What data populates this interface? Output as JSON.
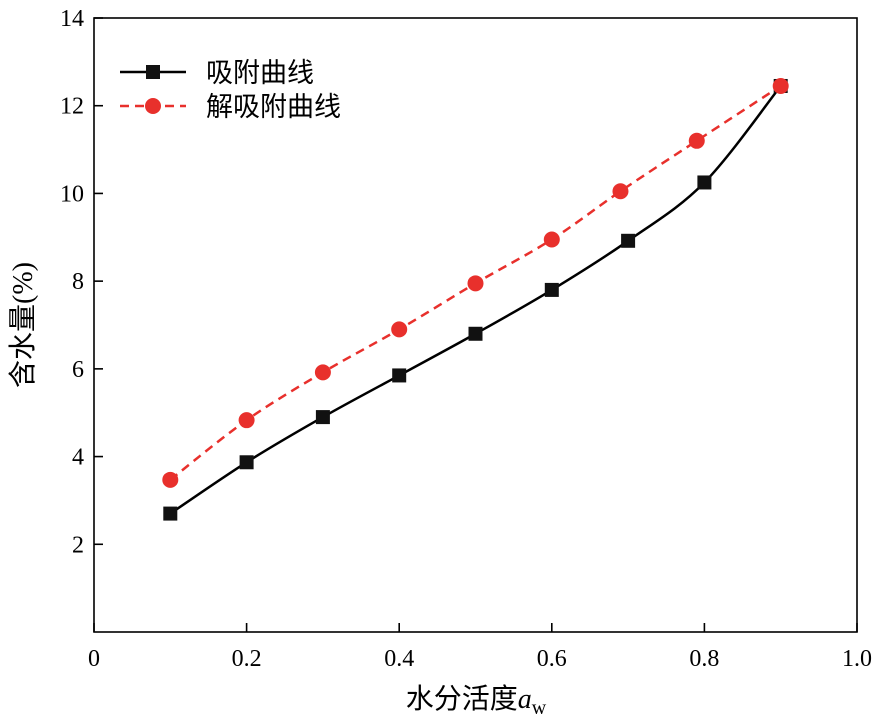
{
  "chart_data": {
    "type": "line",
    "title": "",
    "xlabel_main": "水分活度",
    "xlabel_var": "a",
    "xlabel_sub": "w",
    "ylabel": "含水量(%)",
    "xlim": [
      0,
      1.0
    ],
    "ylim": [
      0,
      14
    ],
    "x_ticks": [
      {
        "value": 0,
        "label": "0"
      },
      {
        "value": 0.2,
        "label": "0.2"
      },
      {
        "value": 0.4,
        "label": "0.4"
      },
      {
        "value": 0.6,
        "label": "0.6"
      },
      {
        "value": 0.8,
        "label": "0.8"
      },
      {
        "value": 1.0,
        "label": "1.0"
      }
    ],
    "y_ticks": [
      {
        "value": 2,
        "label": "2"
      },
      {
        "value": 4,
        "label": "4"
      },
      {
        "value": 6,
        "label": "6"
      },
      {
        "value": 8,
        "label": "8"
      },
      {
        "value": 10,
        "label": "10"
      },
      {
        "value": 12,
        "label": "12"
      },
      {
        "value": 14,
        "label": "14"
      }
    ],
    "grid": false,
    "legend_position": "top-left",
    "series": [
      {
        "name": "吸附曲线",
        "key": "adsorption",
        "color": "#000000",
        "marker": "square",
        "line_style": "solid",
        "x": [
          0.1,
          0.2,
          0.3,
          0.4,
          0.5,
          0.6,
          0.7,
          0.8,
          0.9
        ],
        "y": [
          2.7,
          3.87,
          4.9,
          5.85,
          6.8,
          7.8,
          8.92,
          10.25,
          12.45
        ]
      },
      {
        "name": "解吸附曲线",
        "key": "desorption",
        "color": "#e8302c",
        "marker": "circle",
        "line_style": "dashed",
        "x": [
          0.1,
          0.2,
          0.3,
          0.4,
          0.5,
          0.6,
          0.69,
          0.79,
          0.9
        ],
        "y": [
          3.47,
          4.83,
          5.92,
          6.9,
          7.95,
          8.95,
          10.05,
          11.2,
          12.45
        ]
      }
    ]
  }
}
